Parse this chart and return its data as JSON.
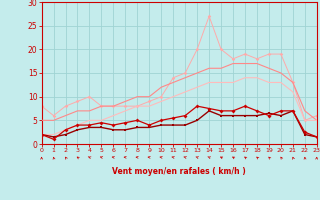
{
  "xlabel": "Vent moyen/en rafales ( km/h )",
  "xlim": [
    0,
    23
  ],
  "ylim": [
    0,
    30
  ],
  "yticks": [
    0,
    5,
    10,
    15,
    20,
    25,
    30
  ],
  "xticks": [
    0,
    1,
    2,
    3,
    4,
    5,
    6,
    7,
    8,
    9,
    10,
    11,
    12,
    13,
    14,
    15,
    16,
    17,
    18,
    19,
    20,
    21,
    22,
    23
  ],
  "bg_color": "#c4ecec",
  "grid_color": "#a0d4d4",
  "x": [
    0,
    1,
    2,
    3,
    4,
    5,
    6,
    7,
    8,
    9,
    10,
    11,
    12,
    13,
    14,
    15,
    16,
    17,
    18,
    19,
    20,
    21,
    22,
    23
  ],
  "y_noisy_pink": [
    8,
    6,
    8,
    9,
    10,
    8,
    8,
    8,
    8,
    9,
    10,
    14,
    15,
    20,
    27,
    20,
    18,
    19,
    18,
    19,
    19,
    13,
    5,
    6
  ],
  "y_smooth_pink": [
    5,
    5,
    6,
    7,
    7,
    8,
    8,
    9,
    10,
    10,
    12,
    13,
    14,
    15,
    16,
    16,
    17,
    17,
    17,
    16,
    15,
    13,
    7,
    5
  ],
  "y_smooth_light": [
    2,
    2,
    3,
    4,
    5,
    5,
    6,
    7,
    8,
    8,
    9,
    10,
    11,
    12,
    13,
    13,
    13,
    14,
    14,
    13,
    13,
    11,
    5,
    5
  ],
  "y_darkred_avg": [
    2,
    1.5,
    2,
    3,
    3.5,
    3.5,
    3,
    3,
    3.5,
    3.5,
    4,
    4,
    4,
    5,
    7,
    6,
    6,
    6,
    6,
    6.5,
    6,
    7,
    2,
    1.5
  ],
  "y_red_gust": [
    2,
    1,
    3,
    4,
    4,
    4.5,
    4,
    4.5,
    5,
    4,
    5,
    5.5,
    6,
    8,
    7.5,
    7,
    7,
    8,
    7,
    6,
    7,
    7,
    2.5,
    1.5
  ],
  "wind_dirs": [
    180,
    185,
    195,
    210,
    225,
    235,
    245,
    255,
    255,
    250,
    245,
    240,
    235,
    230,
    225,
    220,
    215,
    210,
    205,
    200,
    195,
    188,
    182,
    178
  ],
  "color_noisy": "#ffaaaa",
  "color_smooth1": "#ff8888",
  "color_smooth2": "#ffbbbb",
  "color_darkred": "#990000",
  "color_red": "#cc0000",
  "tick_color": "#cc0000",
  "spine_color": "#cc0000"
}
